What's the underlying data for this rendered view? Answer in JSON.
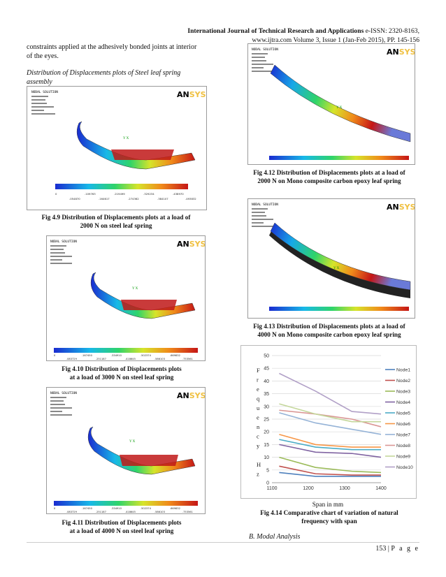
{
  "header": {
    "journal": "International Journal of Technical Research and Applications",
    "issn": "e-ISSN: 2320-8163,",
    "line2": "www.ijtra.com Volume 3, Issue 1 (Jan-Feb 2015), PP. 145-156"
  },
  "left": {
    "intro1": "constraints applied at the adhesively bonded joints at interior",
    "intro2": "of the eyes.",
    "section1": "Distribution of Displacements plots of Steel leaf spring",
    "section2": "assembly"
  },
  "ansys": {
    "title": "NODAL SOLUTION",
    "brand": "AN",
    "brand_dim": "SYS"
  },
  "figs": {
    "f49": {
      "cap1": "Fig 4.9 Distribution of Displacements plots at a load of",
      "cap2": "2000 N on steel leaf spring",
      "top": [
        "0",
        ".109763",
        ".219499",
        ".329234",
        ".438970"
      ],
      "bot": [
        ".054870",
        ".164617",
        ".274362",
        ".384107",
        ".493832"
      ]
    },
    "f410": {
      "cap1": "Fig 4.10 Distribution of Displacements plots",
      "cap2": "at a load of 3000 N on steel leaf spring",
      "top": [
        "0",
        ".167450",
        ".334910",
        ".502374",
        ".669832"
      ],
      "bot": [
        ".083729",
        ".251187",
        ".418645",
        ".586103",
        ".753561"
      ]
    },
    "f411": {
      "cap1": "Fig 4.11 Distribution of Displacements plots",
      "cap2": "at a load of 4000 N on steel leaf spring",
      "top": [
        "0",
        ".167450",
        ".334910",
        ".502374",
        ".669832"
      ],
      "bot": [
        ".083729",
        ".251187",
        ".418645",
        ".586103",
        ".753561"
      ]
    },
    "f412": {
      "cap1": "Fig 4.12 Distribution of Displacements plots at a load of",
      "cap2": "2000 N on Mono composite carbon epoxy leaf spring"
    },
    "f413": {
      "cap1": "Fig 4.13 Distribution of Displacements plots at a load of",
      "cap2": "4000 N on Mono composite carbon epoxy leaf spring"
    },
    "f414": {
      "xcap": "Span in mm",
      "cap1": "Fig 4.14 Comparative chart of variation of natural",
      "cap2": "frequency with span"
    }
  },
  "sectionB": "B.    Modal Analysis",
  "footer": {
    "page": "153",
    "sep": " | ",
    "label": "P a g e"
  },
  "chart_data": {
    "type": "line",
    "title": "",
    "xlabel": "Span in mm",
    "ylabel": "Frequency Hz",
    "ylabel_chars": [
      "F",
      "r",
      "e",
      "q",
      "u",
      "e",
      "n",
      "c",
      "y",
      "",
      "H",
      "z"
    ],
    "x": [
      1100,
      1200,
      1300,
      1400
    ],
    "xlim": [
      1100,
      1400
    ],
    "ylim": [
      0,
      50
    ],
    "yticks": [
      0,
      5,
      10,
      15,
      20,
      25,
      30,
      35,
      40,
      45,
      50
    ],
    "xticks": [
      1100,
      1200,
      1300,
      1400
    ],
    "series": [
      {
        "name": "Node1",
        "color": "#4f81bd",
        "x": [
          1120,
          1220,
          1320,
          1400
        ],
        "values": [
          4,
          2.5,
          2.5,
          2.5
        ]
      },
      {
        "name": "Node2",
        "color": "#c0504d",
        "x": [
          1120,
          1220,
          1320,
          1400
        ],
        "values": [
          6.5,
          3.5,
          3,
          3
        ]
      },
      {
        "name": "Node3",
        "color": "#9bbb59",
        "x": [
          1120,
          1220,
          1320,
          1400
        ],
        "values": [
          10,
          6,
          4.5,
          4
        ]
      },
      {
        "name": "Node4",
        "color": "#8064a2",
        "x": [
          1120,
          1220,
          1320,
          1400
        ],
        "values": [
          15,
          12,
          11.5,
          10
        ]
      },
      {
        "name": "Node5",
        "color": "#4bacc6",
        "x": [
          1120,
          1220,
          1320,
          1400
        ],
        "values": [
          17,
          14,
          13,
          13
        ]
      },
      {
        "name": "Node6",
        "color": "#f79646",
        "x": [
          1120,
          1220,
          1320,
          1400
        ],
        "values": [
          19,
          15,
          14,
          14
        ]
      },
      {
        "name": "Node7",
        "color": "#95b3d7",
        "x": [
          1120,
          1220,
          1320,
          1400
        ],
        "values": [
          27.5,
          23.5,
          21,
          19
        ]
      },
      {
        "name": "Node8",
        "color": "#da9694",
        "x": [
          1120,
          1220,
          1320,
          1400
        ],
        "values": [
          28.5,
          27,
          25,
          22
        ]
      },
      {
        "name": "Node9",
        "color": "#c4d79b",
        "x": [
          1120,
          1220,
          1320,
          1400
        ],
        "values": [
          31,
          27,
          24,
          24
        ]
      },
      {
        "name": "Node10",
        "color": "#b1a0c7",
        "x": [
          1120,
          1220,
          1320,
          1400
        ],
        "values": [
          43,
          36,
          28,
          27
        ]
      }
    ]
  }
}
